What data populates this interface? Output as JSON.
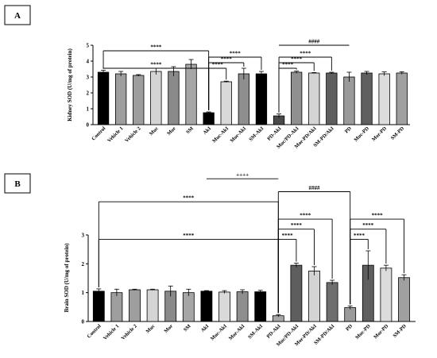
{
  "chart_data": [
    {
      "type": "bar",
      "panel_label": "A",
      "ylabel": "Kidney SOD (U/mg of protein)",
      "ylim": [
        0,
        5
      ],
      "yticks": [
        0,
        1,
        2,
        3,
        4,
        5
      ],
      "categories": [
        "Control",
        "Vehicle 1",
        "Vehicle 2",
        "Muc",
        "Mor",
        "SM",
        "AkI",
        "Muc-AkI",
        "Mor-AkI",
        "SM-AkI",
        "PD-AkI",
        "Muc/PD-AkI",
        "Mor-PD/AkI",
        "SM-PD/AkI",
        "PD",
        "Muc-PD",
        "Mor-PD",
        "SM-PD"
      ],
      "values": [
        3.3,
        3.2,
        3.1,
        3.35,
        3.35,
        3.8,
        0.75,
        2.7,
        3.2,
        3.2,
        0.55,
        3.3,
        3.25,
        3.25,
        3.0,
        3.25,
        3.2,
        3.25
      ],
      "errors": [
        0.12,
        0.15,
        0.05,
        0.2,
        0.3,
        0.3,
        0.05,
        0.04,
        0.35,
        0.15,
        0.12,
        0.07,
        0.03,
        0.05,
        0.3,
        0.1,
        0.12,
        0.08
      ],
      "colors": [
        "#000000",
        "#9e9e9e",
        "#9e9e9e",
        "#d4d4d4",
        "#8a8a8a",
        "#a6a6a6",
        "#000000",
        "#d9d9d9",
        "#8e8e8e",
        "#000000",
        "#4a4a4a",
        "#8f8f8f",
        "#d4d4d4",
        "#5e5e5e",
        "#9a9a9a",
        "#5f5f5f",
        "#dcdcdc",
        "#a0a0a0"
      ],
      "annotations": [
        {
          "from": 0,
          "to": 6,
          "level": 4.65,
          "label": "****"
        },
        {
          "from": 0,
          "to": 6,
          "level": 3.55,
          "label": "****"
        },
        {
          "from": 6,
          "to": 7,
          "level": 3.55,
          "label": "****"
        },
        {
          "from": 6,
          "to": 8,
          "level": 3.9,
          "label": "****"
        },
        {
          "from": 6,
          "to": 9,
          "level": 4.25,
          "label": "****"
        },
        {
          "from": 10,
          "to": 11,
          "level": 3.55,
          "label": "****"
        },
        {
          "from": 10,
          "to": 12,
          "level": 3.9,
          "label": "****"
        },
        {
          "from": 10,
          "to": 13,
          "level": 4.25,
          "label": "****"
        },
        {
          "from": 10,
          "to": 14,
          "level": 5.0,
          "label": "####",
          "down": false
        }
      ]
    },
    {
      "type": "bar",
      "panel_label": "B",
      "ylabel": "Brain SOD (U/mg of protein)",
      "ylim": [
        0,
        3
      ],
      "yticks": [
        0,
        1,
        2,
        3
      ],
      "categories": [
        "Control",
        "Vehicle 1",
        "Vehicle 2",
        "Muc",
        "Mor",
        "SM",
        "AkI",
        "Muc-AkI",
        "Mor-AkI",
        "SM-AkI",
        "PD-AkI",
        "Muc/PD-AkI",
        "Mor-PD/AkI",
        "SM-PD/AkI",
        "PD",
        "Muc-PD",
        "Mor-PD",
        "SM-PD"
      ],
      "values": [
        1.05,
        1.0,
        1.1,
        1.1,
        1.05,
        1.0,
        1.05,
        1.02,
        1.03,
        1.03,
        0.2,
        1.95,
        1.75,
        1.35,
        0.48,
        1.95,
        1.85,
        1.52
      ],
      "errors": [
        0.08,
        0.12,
        0.02,
        0.02,
        0.18,
        0.12,
        0.02,
        0.05,
        0.07,
        0.05,
        0.04,
        0.07,
        0.15,
        0.08,
        0.06,
        0.5,
        0.1,
        0.1
      ],
      "colors": [
        "#000000",
        "#9e9e9e",
        "#9e9e9e",
        "#d4d4d4",
        "#8a8a8a",
        "#a6a6a6",
        "#000000",
        "#d9d9d9",
        "#8e8e8e",
        "#000000",
        "#a8a8a8",
        "#5e5e5e",
        "#d4d4d4",
        "#6e6e6e",
        "#9a9a9a",
        "#5f5f5f",
        "#dcdcdc",
        "#a0a0a0"
      ],
      "annotations": [
        {
          "from": 0,
          "to": 10,
          "level": 4.15,
          "label": "****"
        },
        {
          "from": 0,
          "to": 10,
          "level": 2.85,
          "label": "****"
        },
        {
          "from": 10,
          "to": 11,
          "level": 2.85,
          "label": "****"
        },
        {
          "from": 10,
          "to": 12,
          "level": 3.2,
          "label": "****"
        },
        {
          "from": 10,
          "to": 13,
          "level": 3.55,
          "label": "****"
        },
        {
          "from": 14,
          "to": 15,
          "level": 2.85,
          "label": "****"
        },
        {
          "from": 14,
          "to": 16,
          "level": 3.2,
          "label": "****"
        },
        {
          "from": 14,
          "to": 17,
          "level": 3.55,
          "label": "****"
        },
        {
          "from": 10,
          "to": 14,
          "level": 4.5,
          "label": "####"
        },
        {
          "from": 6,
          "to": 10,
          "level": 4.95,
          "label": "++++",
          "down": false
        }
      ]
    }
  ]
}
